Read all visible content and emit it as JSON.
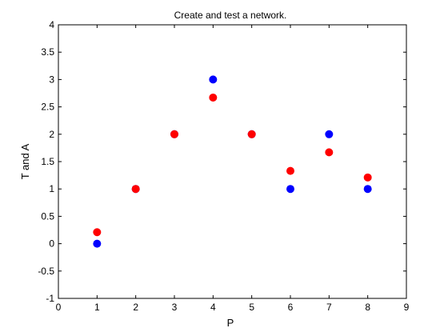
{
  "chart_data": {
    "type": "scatter",
    "title": "Create and test a network.",
    "xlabel": "P",
    "ylabel": "T and A",
    "xlim": [
      0,
      9
    ],
    "ylim": [
      -1,
      4
    ],
    "xticks": [
      "0",
      "1",
      "2",
      "3",
      "4",
      "5",
      "6",
      "7",
      "8",
      "9"
    ],
    "yticks": [
      "-1",
      "-0.5",
      "0",
      "0.5",
      "1",
      "1.5",
      "2",
      "2.5",
      "3",
      "3.5",
      "4"
    ],
    "grid": false,
    "series": [
      {
        "color": "#0000ff",
        "points": [
          {
            "x": 1,
            "y": 0
          },
          {
            "x": 2,
            "y": 1
          },
          {
            "x": 3,
            "y": 2
          },
          {
            "x": 4,
            "y": 3
          },
          {
            "x": 5,
            "y": 2
          },
          {
            "x": 6,
            "y": 1
          },
          {
            "x": 7,
            "y": 2
          },
          {
            "x": 8,
            "y": 1
          }
        ]
      },
      {
        "color": "#ff0000",
        "points": [
          {
            "x": 1,
            "y": 0.21
          },
          {
            "x": 2,
            "y": 1.0
          },
          {
            "x": 3,
            "y": 2.0
          },
          {
            "x": 4,
            "y": 2.67
          },
          {
            "x": 5,
            "y": 2.0
          },
          {
            "x": 6,
            "y": 1.33
          },
          {
            "x": 7,
            "y": 1.67
          },
          {
            "x": 8,
            "y": 1.21
          }
        ]
      }
    ]
  }
}
